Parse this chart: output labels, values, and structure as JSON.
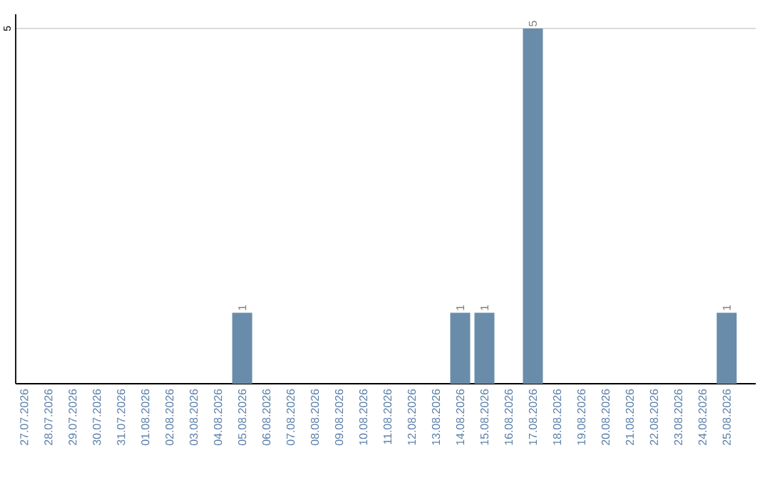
{
  "chart_data": {
    "type": "bar",
    "categories": [
      "27.07.2026",
      "28.07.2026",
      "29.07.2026",
      "30.07.2026",
      "31.07.2026",
      "01.08.2026",
      "02.08.2026",
      "03.08.2026",
      "04.08.2026",
      "05.08.2026",
      "06.08.2026",
      "07.08.2026",
      "08.08.2026",
      "09.08.2026",
      "10.08.2026",
      "11.08.2026",
      "12.08.2026",
      "13.08.2026",
      "14.08.2026",
      "15.08.2026",
      "16.08.2026",
      "17.08.2026",
      "18.08.2026",
      "19.08.2026",
      "20.08.2026",
      "21.08.2026",
      "22.08.2026",
      "23.08.2026",
      "24.08.2026",
      "25.08.2026"
    ],
    "values": [
      0,
      0,
      0,
      0,
      0,
      0,
      0,
      0,
      0,
      1,
      0,
      0,
      0,
      0,
      0,
      0,
      0,
      0,
      1,
      1,
      0,
      5,
      0,
      0,
      0,
      0,
      0,
      0,
      0,
      1
    ],
    "value_labels": [
      null,
      null,
      null,
      null,
      null,
      null,
      null,
      null,
      null,
      "1",
      null,
      null,
      null,
      null,
      null,
      null,
      null,
      null,
      "1",
      "1",
      null,
      "5",
      null,
      null,
      null,
      null,
      null,
      null,
      null,
      "1"
    ],
    "color": "#6a8cab",
    "ylim": [
      0,
      5.2
    ],
    "yticks": [
      5
    ],
    "grid": "y"
  }
}
